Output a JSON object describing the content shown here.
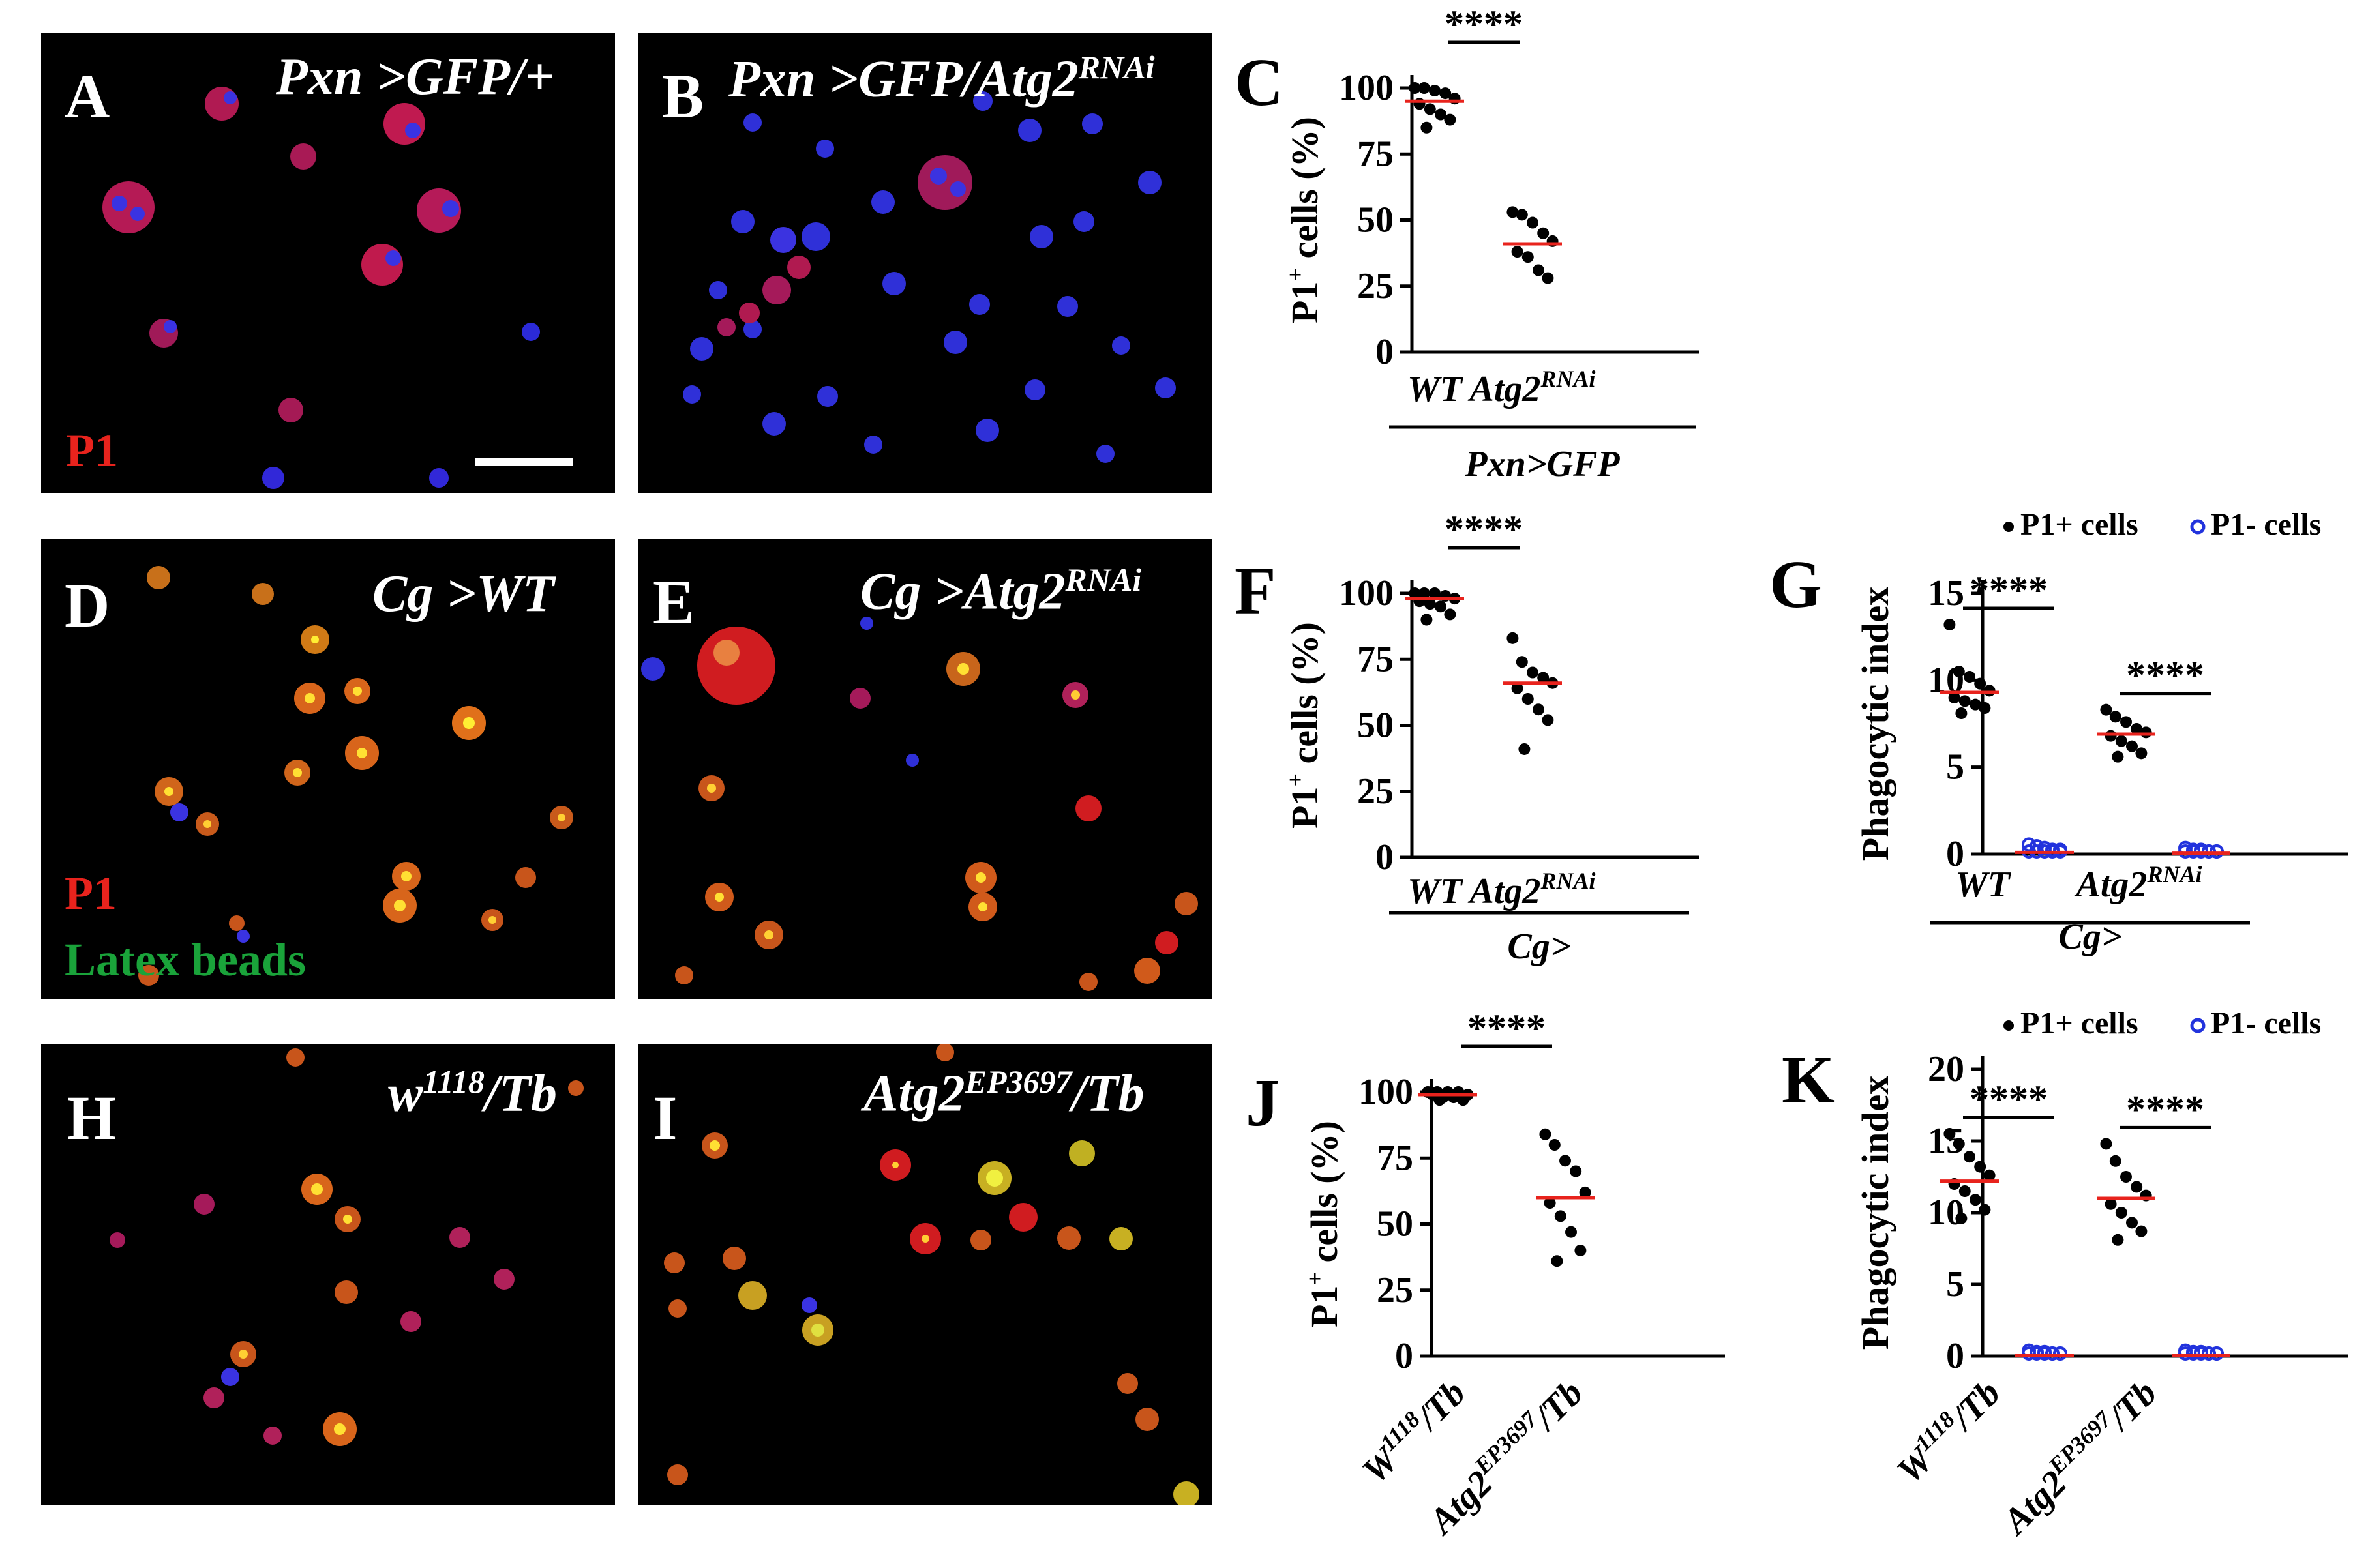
{
  "panels": {
    "A": {
      "letter": "A",
      "genotype": "Pxn >GFP/+",
      "genotype_base": "",
      "stain1": "P1"
    },
    "B": {
      "letter": "B",
      "genotype_base": "Pxn >GFP/Atg2",
      "genotype_sup": "RNAi"
    },
    "D": {
      "letter": "D",
      "genotype": "Cg >WT",
      "stain1": "P1",
      "stain2": "Latex beads"
    },
    "E": {
      "letter": "E",
      "genotype_base": "Cg >Atg2",
      "genotype_sup": "RNAi"
    },
    "H": {
      "letter": "H",
      "genotype_base": "w",
      "genotype_sup": "1118",
      "genotype_tail": "/Tb"
    },
    "I": {
      "letter": "I",
      "genotype_base": "Atg2",
      "genotype_sup": "EP3697",
      "genotype_tail": "/Tb"
    },
    "C": {
      "letter": "C"
    },
    "F": {
      "letter": "F"
    },
    "G": {
      "letter": "G"
    },
    "J": {
      "letter": "J"
    },
    "K": {
      "letter": "K"
    }
  },
  "colors": {
    "red_stain": "#e8231d",
    "green_stain": "#1aa33a",
    "median": "#e8231d",
    "p1neg": "#2233dd",
    "p1pos": "#000000"
  },
  "chart_data": [
    {
      "panel": "C",
      "type": "scatter",
      "ylabel": "P1+ cells (%)",
      "ylim": [
        0,
        100
      ],
      "yticks": [
        0,
        25,
        50,
        75,
        100
      ],
      "categories": [
        "WT",
        "Atg2RNAi"
      ],
      "group_label": "Pxn>GFP",
      "series": [
        {
          "values": [
            [
              100,
              100,
              99,
              98,
              96,
              94,
              92,
              90,
              88,
              85
            ],
            [
              53,
              52,
              49,
              45,
              42,
              38,
              36,
              31,
              28
            ]
          ],
          "medians": [
            95,
            41
          ]
        }
      ],
      "significance": [
        {
          "between": [
            "WT",
            "Atg2RNAi"
          ],
          "label": "****"
        }
      ]
    },
    {
      "panel": "F",
      "type": "scatter",
      "ylabel": "P1+ cells (%)",
      "ylim": [
        0,
        100
      ],
      "yticks": [
        0,
        25,
        50,
        75,
        100
      ],
      "categories": [
        "WT",
        "Atg2RNAi"
      ],
      "group_label": "Cg>",
      "series": [
        {
          "values": [
            [
              100,
              100,
              100,
              99,
              98,
              97,
              96,
              95,
              92,
              90
            ],
            [
              83,
              74,
              70,
              68,
              66,
              64,
              60,
              56,
              52,
              41
            ]
          ],
          "medians": [
            98,
            66
          ]
        }
      ],
      "significance": [
        {
          "between": [
            "WT",
            "Atg2RNAi"
          ],
          "label": "****"
        }
      ]
    },
    {
      "panel": "G",
      "type": "scatter",
      "ylabel": "Phagocytic index",
      "ylim": [
        0,
        15
      ],
      "yticks": [
        0,
        5,
        10,
        15
      ],
      "categories": [
        "WT",
        "Atg2RNAi"
      ],
      "group_label": "Cg>",
      "legend": [
        "P1+ cells",
        "P1- cells"
      ],
      "series": [
        {
          "name": "P1+ cells",
          "values": [
            [
              13.2,
              10.5,
              10.2,
              9.8,
              9.4,
              9.0,
              8.8,
              8.6,
              8.4,
              8.1
            ],
            [
              8.3,
              7.9,
              7.6,
              7.2,
              7.0,
              6.8,
              6.5,
              6.2,
              5.8,
              5.6
            ]
          ],
          "medians": [
            9.3,
            6.9
          ]
        },
        {
          "name": "P1- cells",
          "values": [
            [
              0.4,
              0.3,
              0.2,
              0.1,
              0.1,
              0,
              0,
              0,
              0,
              0
            ],
            [
              0.2,
              0.1,
              0.1,
              0,
              0,
              0,
              0,
              0,
              0,
              0
            ]
          ],
          "medians": [
            0.1,
            0.05
          ]
        }
      ],
      "significance": [
        {
          "between": [
            "WT:P1+",
            "WT:P1-"
          ],
          "label": "****"
        },
        {
          "between": [
            "Atg2RNAi:P1+",
            "Atg2RNAi:P1-"
          ],
          "label": "****"
        }
      ]
    },
    {
      "panel": "J",
      "type": "scatter",
      "ylabel": "P1+ cells (%)",
      "ylim": [
        0,
        100
      ],
      "yticks": [
        0,
        25,
        50,
        75,
        100
      ],
      "categories": [
        "W1118/Tb",
        "Atg2EP3697/Tb"
      ],
      "series": [
        {
          "values": [
            [
              100,
              100,
              100,
              100,
              99,
              99,
              98,
              98,
              97,
              97
            ],
            [
              84,
              80,
              74,
              70,
              62,
              58,
              53,
              47,
              40,
              36
            ]
          ],
          "medians": [
            99,
            60
          ]
        }
      ],
      "significance": [
        {
          "between": [
            "W1118/Tb",
            "Atg2EP3697/Tb"
          ],
          "label": "****"
        }
      ]
    },
    {
      "panel": "K",
      "type": "scatter",
      "ylabel": "Phagocytic index",
      "ylim": [
        0,
        20
      ],
      "yticks": [
        0,
        5,
        10,
        15,
        20
      ],
      "categories": [
        "W1118/Tb",
        "Atg2EP3697/Tb"
      ],
      "legend": [
        "P1+ cells",
        "P1- cells"
      ],
      "series": [
        {
          "name": "P1+ cells",
          "values": [
            [
              15.5,
              14.8,
              13.9,
              13.2,
              12.6,
              12.0,
              11.5,
              10.9,
              10.2,
              9.6
            ],
            [
              14.8,
              13.6,
              12.5,
              11.8,
              11.2,
              10.6,
              10.0,
              9.3,
              8.7,
              8.1
            ]
          ],
          "medians": [
            12.2,
            11.0
          ]
        },
        {
          "name": "P1- cells",
          "values": [
            [
              0.2,
              0.1,
              0.1,
              0,
              0,
              0,
              0,
              0,
              0,
              0
            ],
            [
              0.2,
              0.1,
              0.1,
              0,
              0,
              0,
              0,
              0,
              0,
              0
            ]
          ],
          "medians": [
            0.05,
            0.05
          ]
        }
      ],
      "significance": [
        {
          "between": [
            "W1118/Tb:P1+",
            "W1118/Tb:P1-"
          ],
          "label": "****"
        },
        {
          "between": [
            "Atg2EP3697/Tb:P1+",
            "Atg2EP3697/Tb:P1-"
          ],
          "label": "****"
        }
      ]
    }
  ]
}
